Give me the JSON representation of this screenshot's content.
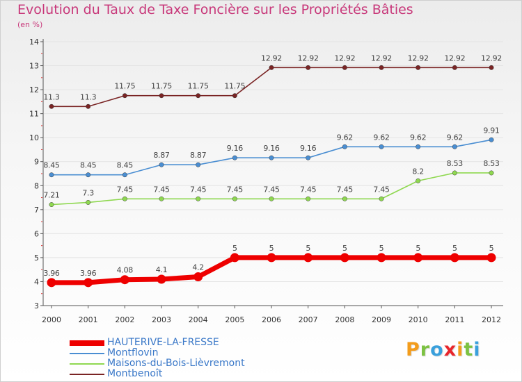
{
  "chart_data": {
    "type": "line",
    "title": "Evolution du Taux de Taxe Foncière sur les Propriétés Bâties",
    "subtitle": "(en %)",
    "xlabel": "",
    "ylabel": "",
    "x": [
      "2000",
      "2001",
      "2002",
      "2003",
      "2004",
      "2005",
      "2006",
      "2007",
      "2008",
      "2009",
      "2010",
      "2011",
      "2012"
    ],
    "ylim": [
      3,
      14
    ],
    "yticks": [
      "3",
      "4",
      "5",
      "6",
      "7",
      "8",
      "9",
      "10",
      "11",
      "12",
      "13",
      "14"
    ],
    "grid": "horizontal",
    "legend_position": "bottom-left",
    "series": [
      {
        "name": "Montbenoît",
        "color": "#7a2424",
        "values": [
          11.3,
          11.3,
          11.75,
          11.75,
          11.75,
          11.75,
          12.92,
          12.92,
          12.92,
          12.92,
          12.92,
          12.92,
          12.92
        ],
        "labels": [
          "11.3",
          "11.3",
          "11.75",
          "11.75",
          "11.75",
          "11.75",
          "12.92",
          "12.92",
          "12.92",
          "12.92",
          "12.92",
          "12.92",
          "12.92"
        ]
      },
      {
        "name": "Montflovin",
        "color": "#4a8ed2",
        "values": [
          8.45,
          8.45,
          8.45,
          8.87,
          8.87,
          9.16,
          9.16,
          9.16,
          9.62,
          9.62,
          9.62,
          9.62,
          9.91
        ],
        "labels": [
          "8.45",
          "8.45",
          "8.45",
          "8.87",
          "8.87",
          "9.16",
          "9.16",
          "9.16",
          "9.62",
          "9.62",
          "9.62",
          "9.62",
          "9.91"
        ]
      },
      {
        "name": "Maisons-du-Bois-Lièvremont",
        "color": "#8fd850",
        "values": [
          7.21,
          7.3,
          7.45,
          7.45,
          7.45,
          7.45,
          7.45,
          7.45,
          7.45,
          7.45,
          8.2,
          8.53,
          8.53
        ],
        "labels": [
          "7.21",
          "7.3",
          "7.45",
          "7.45",
          "7.45",
          "7.45",
          "7.45",
          "7.45",
          "7.45",
          "7.45",
          "8.2",
          "8.53",
          "8.53"
        ]
      },
      {
        "name": "HAUTERIVE-LA-FRESSE",
        "color": "#ee0000",
        "values": [
          3.96,
          3.96,
          4.08,
          4.1,
          4.2,
          5,
          5,
          5,
          5,
          5,
          5,
          5,
          5
        ],
        "labels": [
          "3.96",
          "3.96",
          "4.08",
          "4.1",
          "4.2",
          "5",
          "5",
          "5",
          "5",
          "5",
          "5",
          "5",
          "5"
        ]
      }
    ]
  },
  "legend": [
    {
      "label": "HAUTERIVE-LA-FRESSE",
      "color": "#ee0000"
    },
    {
      "label": "Montflovin",
      "color": "#4a8ed2"
    },
    {
      "label": "Maisons-du-Bois-Lièvremont",
      "color": "#8fd850"
    },
    {
      "label": "Montbenoît",
      "color": "#7a2424"
    }
  ],
  "logo": {
    "text": "Proxiti",
    "letters": [
      {
        "ch": "P",
        "color": "#f39c1b"
      },
      {
        "ch": "r",
        "color": "#7cc242"
      },
      {
        "ch": "o",
        "color": "#3aa0dc"
      },
      {
        "ch": "x",
        "color": "#e8262c"
      },
      {
        "ch": "i",
        "color": "#f39c1b"
      },
      {
        "ch": "t",
        "color": "#7cc242"
      },
      {
        "ch": "i",
        "color": "#3aa0dc"
      }
    ]
  }
}
